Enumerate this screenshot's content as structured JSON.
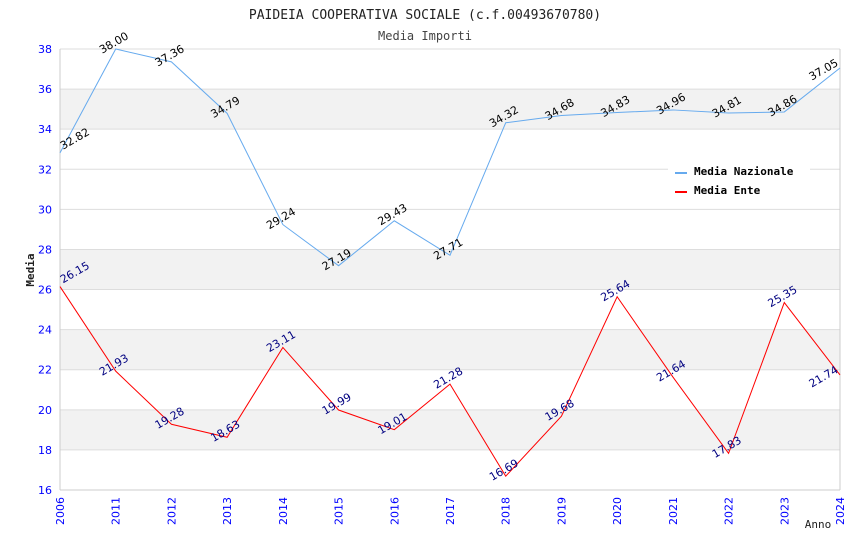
{
  "chart_data": {
    "type": "line",
    "title": "PAIDEIA COOPERATIVA SOCIALE (c.f.00493670780)",
    "subtitle": "Media Importi",
    "xlabel": "Anno",
    "ylabel": "Media",
    "ylim": [
      16,
      38
    ],
    "yticks": [
      16,
      18,
      20,
      22,
      24,
      26,
      28,
      30,
      32,
      34,
      36,
      38
    ],
    "grid": true,
    "legend_position": "top-right",
    "categories": [
      "2006",
      "2011",
      "2012",
      "2013",
      "2014",
      "2015",
      "2016",
      "2017",
      "2018",
      "2019",
      "2020",
      "2021",
      "2022",
      "2023",
      "2024"
    ],
    "series": [
      {
        "name": "Media Nazionale",
        "color": "#66aaee",
        "label_color": "#000000",
        "values": [
          32.82,
          38.0,
          37.36,
          34.79,
          29.24,
          27.19,
          29.43,
          27.71,
          34.32,
          34.68,
          34.83,
          34.96,
          34.81,
          34.86,
          37.05
        ],
        "labels": [
          "32.82",
          "38.00",
          "37.36",
          "34.79",
          "29.24",
          "27.19",
          "29.43",
          "27.71",
          "34.32",
          "34.68",
          "34.83",
          "34.96",
          "34.81",
          "34.86",
          "37.05"
        ]
      },
      {
        "name": "Media Ente",
        "color": "#ff0000",
        "label_color": "#000080",
        "values": [
          26.15,
          21.93,
          19.28,
          18.63,
          23.11,
          19.99,
          19.01,
          21.28,
          16.69,
          19.68,
          25.64,
          21.64,
          17.83,
          25.35,
          21.74
        ],
        "labels": [
          "26.15",
          "21.93",
          "19.28",
          "18.63",
          "23.11",
          "19.99",
          "19.01",
          "21.28",
          "16.69",
          "19.68",
          "25.64",
          "21.64",
          "17.83",
          "25.35",
          "21.74"
        ]
      }
    ]
  }
}
